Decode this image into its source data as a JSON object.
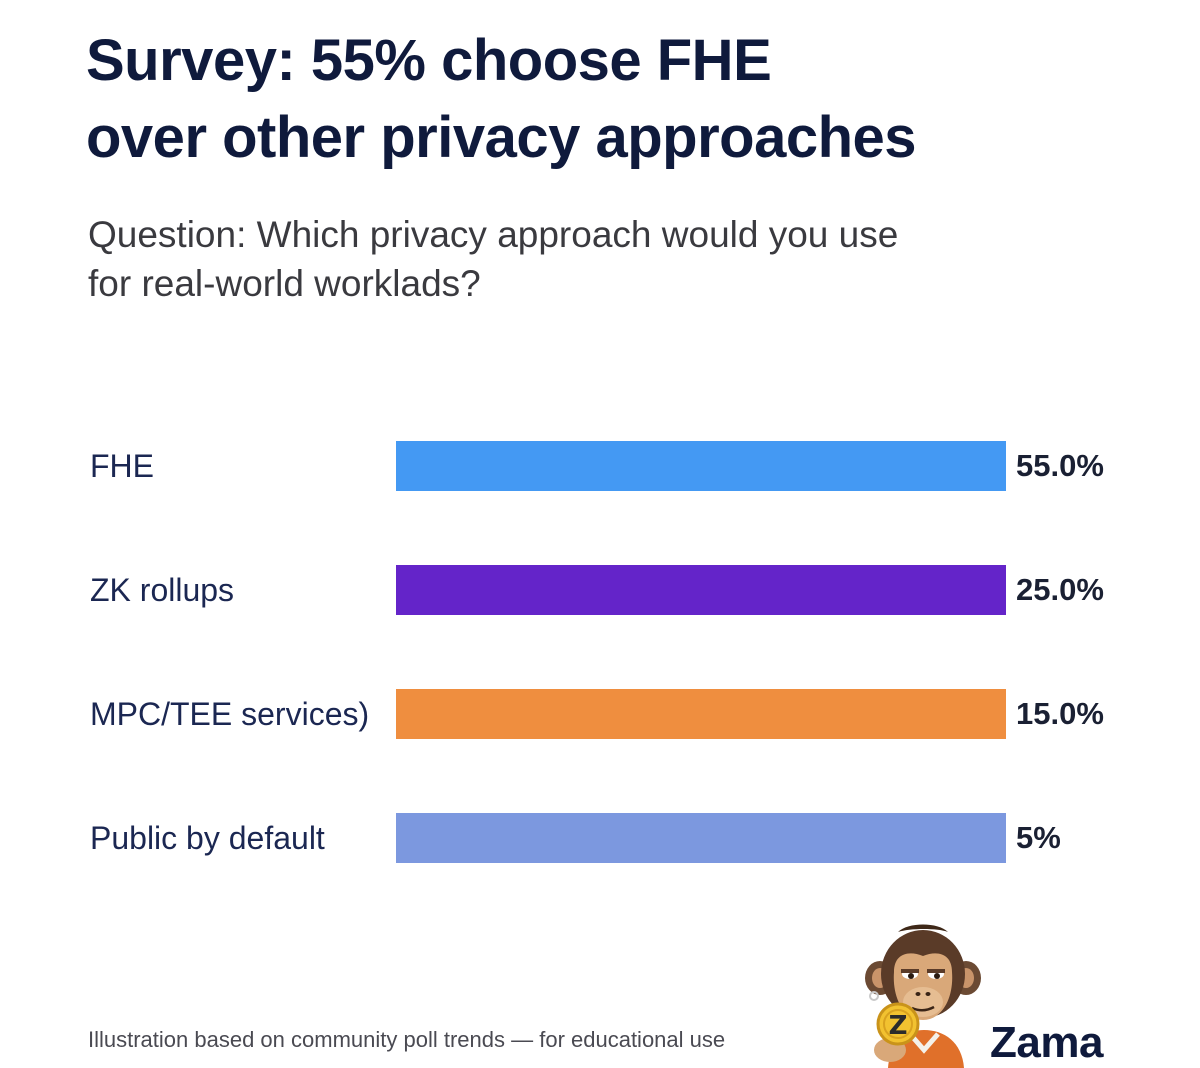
{
  "header": {
    "title_line1": "Survey: 55% choose FHE",
    "title_line2": "over other privacy approaches",
    "subtitle_line1": "Question: Which privacy approach would you use",
    "subtitle_line2": "for real-world worklads?"
  },
  "chart_data": {
    "type": "bar",
    "orientation": "horizontal",
    "categories": [
      "FHE",
      "ZK rollups",
      "MPC/TEE services)",
      "Public by default"
    ],
    "values": [
      55.0,
      25.0,
      15.0,
      5
    ],
    "value_labels": [
      "55.0%",
      "25.0%",
      "15.0%",
      "5%"
    ],
    "colors": [
      "#4499f3",
      "#6424c9",
      "#ef8e3f",
      "#7c98df"
    ],
    "legend": "none",
    "grid": false
  },
  "footer": {
    "footnote": "Illustration based on community poll trends — for educational use",
    "brand_name": "Zama",
    "mascot_icon": "chimp-mascot-holding-z-coin",
    "coin_letter": "Z"
  }
}
